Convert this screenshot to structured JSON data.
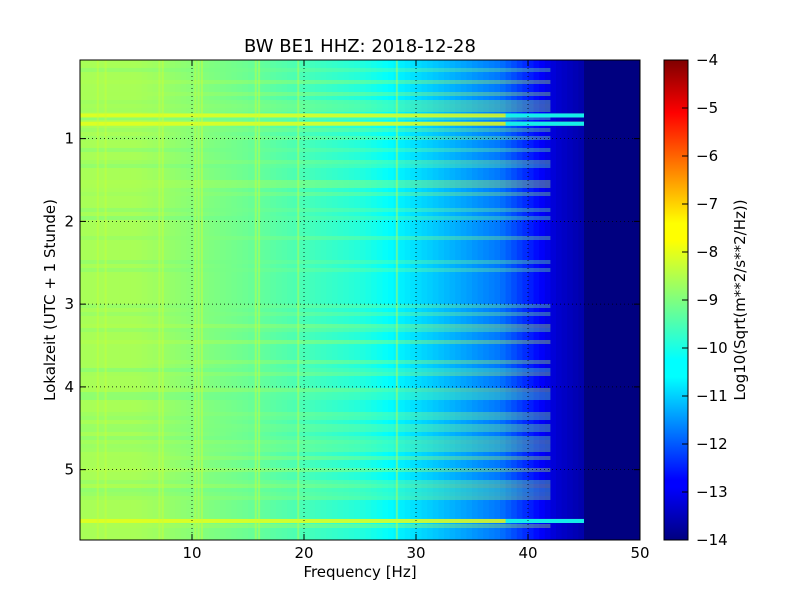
{
  "chart_data": {
    "type": "heatmap",
    "title": "BW BE1 HHZ: 2018-12-28",
    "xlabel": "Frequency [Hz]",
    "ylabel": "Lokalzeit (UTC + 1 Stunde)",
    "colorbar_label": "Log10(Sqrt(m**2/s**2/Hz))",
    "xlim": [
      0,
      50
    ],
    "ylim": [
      5.85,
      0.05
    ],
    "x_ticks": [
      10,
      20,
      30,
      40,
      50
    ],
    "y_ticks": [
      1,
      2,
      3,
      4,
      5
    ],
    "colorbar_range": [
      -14,
      -4
    ],
    "colorbar_ticks": [
      -4,
      -5,
      -6,
      -7,
      -8,
      -9,
      -10,
      -11,
      -12,
      -13,
      -14
    ],
    "colormap": "jet",
    "grid": true,
    "bands": [
      {
        "f_start": 0,
        "f_end": 10,
        "level": -8.6
      },
      {
        "f_start": 10,
        "f_end": 20,
        "level": -9.2
      },
      {
        "f_start": 20,
        "f_end": 30,
        "level": -9.9
      },
      {
        "f_start": 30,
        "f_end": 35,
        "level": -10.9
      },
      {
        "f_start": 35,
        "f_end": 40,
        "level": -11.6
      },
      {
        "f_start": 40,
        "f_end": 45,
        "level": -13.2
      },
      {
        "f_start": 45,
        "f_end": 50,
        "level": -14.0
      }
    ],
    "high_noise_hours": [
      0.72,
      0.82,
      5.62
    ]
  }
}
